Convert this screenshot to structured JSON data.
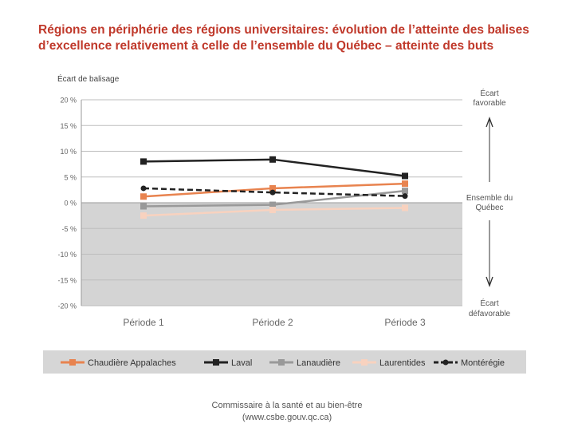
{
  "title": {
    "line1": "Régions en périphérie des régions universitaires: évolution de l’atteinte des balises",
    "line2": "d’excellence relativement à celle de l’ensemble du Québec – atteinte des buts"
  },
  "footer": {
    "line1": "Commissaire à la santé et au bien-être",
    "line2": "(www.csbe.gouv.qc.ca)"
  },
  "chart_data": {
    "type": "line",
    "ylabel": "Écart de balisage",
    "categories": [
      "Période 1",
      "Période 2",
      "Période 3"
    ],
    "ylim": [
      -20,
      20
    ],
    "yticks": [
      20,
      15,
      10,
      5,
      0,
      -5,
      -10,
      -15,
      -20
    ],
    "ytick_labels": [
      "20 %",
      "15 %",
      "10 %",
      "5 %",
      "0 %",
      "-5 %",
      "-10 %",
      "-15 %",
      "-20 %"
    ],
    "grid": true,
    "legend_position": "bottom",
    "annotations": {
      "top": [
        "Écart",
        "favorable"
      ],
      "middle": [
        "Ensemble du",
        "Québec"
      ],
      "bottom": [
        "Écart",
        "défavorable"
      ]
    },
    "series": [
      {
        "name": "Chaudière Appalaches",
        "values": [
          1.2,
          2.8,
          3.7
        ],
        "color": "#e8834f",
        "dashed": false,
        "marker": "square"
      },
      {
        "name": "Laval",
        "values": [
          8.0,
          8.4,
          5.2
        ],
        "color": "#222222",
        "dashed": false,
        "marker": "square"
      },
      {
        "name": "Lanaudière",
        "values": [
          -0.7,
          -0.4,
          2.3
        ],
        "color": "#999999",
        "dashed": false,
        "marker": "square"
      },
      {
        "name": "Laurentides",
        "values": [
          -2.5,
          -1.4,
          -1.0
        ],
        "color": "#f8d2bf",
        "dashed": false,
        "marker": "square"
      },
      {
        "name": "Montérégie",
        "values": [
          2.8,
          2.0,
          1.3
        ],
        "color": "#222222",
        "dashed": true,
        "marker": "circle"
      }
    ]
  }
}
